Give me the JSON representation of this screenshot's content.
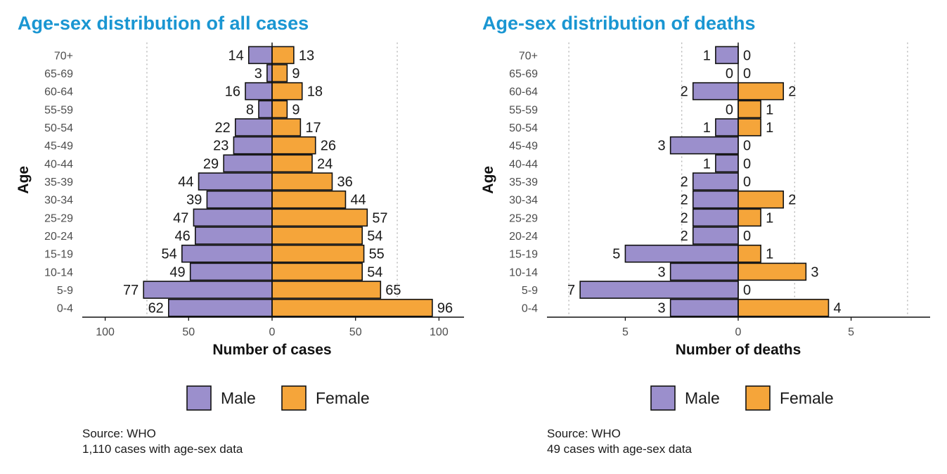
{
  "charts": [
    {
      "title": "Age-sex distribution of all cases",
      "source": "Source: WHO",
      "note": "1,110 cases with age-sex data"
    },
    {
      "title": "Age-sex distribution of deaths",
      "source": "Source: WHO",
      "note": "49 cases with age-sex data"
    }
  ],
  "chart_data": [
    {
      "type": "bar",
      "orientation": "horizontal-population-pyramid",
      "categories": [
        "0-4",
        "5-9",
        "10-14",
        "15-19",
        "20-24",
        "25-29",
        "30-34",
        "35-39",
        "40-44",
        "45-49",
        "50-54",
        "55-59",
        "60-64",
        "65-69",
        "70+"
      ],
      "series": [
        {
          "name": "Male",
          "color": "#9b8fcc",
          "values": [
            62,
            77,
            49,
            54,
            46,
            47,
            39,
            44,
            29,
            23,
            22,
            8,
            16,
            3,
            14
          ]
        },
        {
          "name": "Female",
          "color": "#f5a53a",
          "values": [
            96,
            65,
            54,
            55,
            54,
            57,
            44,
            36,
            24,
            26,
            17,
            9,
            18,
            9,
            13
          ]
        }
      ],
      "xlabel": "Number of cases",
      "ylabel": "Age",
      "xticks": [
        -100,
        -50,
        0,
        50,
        100
      ],
      "xtick_labels": [
        "100",
        "50",
        "0",
        "50",
        "100"
      ],
      "xlim": [
        -115,
        115
      ],
      "vgrid": [
        -75,
        75
      ],
      "legend": {
        "position": "bottom",
        "labels": [
          "Male",
          "Female"
        ]
      }
    },
    {
      "type": "bar",
      "orientation": "horizontal-population-pyramid",
      "categories": [
        "0-4",
        "5-9",
        "10-14",
        "15-19",
        "20-24",
        "25-29",
        "30-34",
        "35-39",
        "40-44",
        "45-49",
        "50-54",
        "55-59",
        "60-64",
        "65-69",
        "70+"
      ],
      "series": [
        {
          "name": "Male",
          "color": "#9b8fcc",
          "values": [
            3,
            7,
            3,
            5,
            2,
            2,
            2,
            2,
            1,
            3,
            1,
            0,
            2,
            0,
            1
          ]
        },
        {
          "name": "Female",
          "color": "#f5a53a",
          "values": [
            4,
            0,
            3,
            1,
            0,
            1,
            2,
            0,
            0,
            0,
            1,
            1,
            2,
            0,
            0
          ]
        }
      ],
      "xlabel": "Number of deaths",
      "ylabel": "Age",
      "xticks": [
        -5,
        0,
        5
      ],
      "xtick_labels": [
        "5",
        "0",
        "5"
      ],
      "xlim": [
        -8.5,
        8.5
      ],
      "vgrid": [
        -7.5,
        -2.5,
        2.5,
        7.5
      ],
      "legend": {
        "position": "bottom",
        "labels": [
          "Male",
          "Female"
        ]
      }
    }
  ]
}
